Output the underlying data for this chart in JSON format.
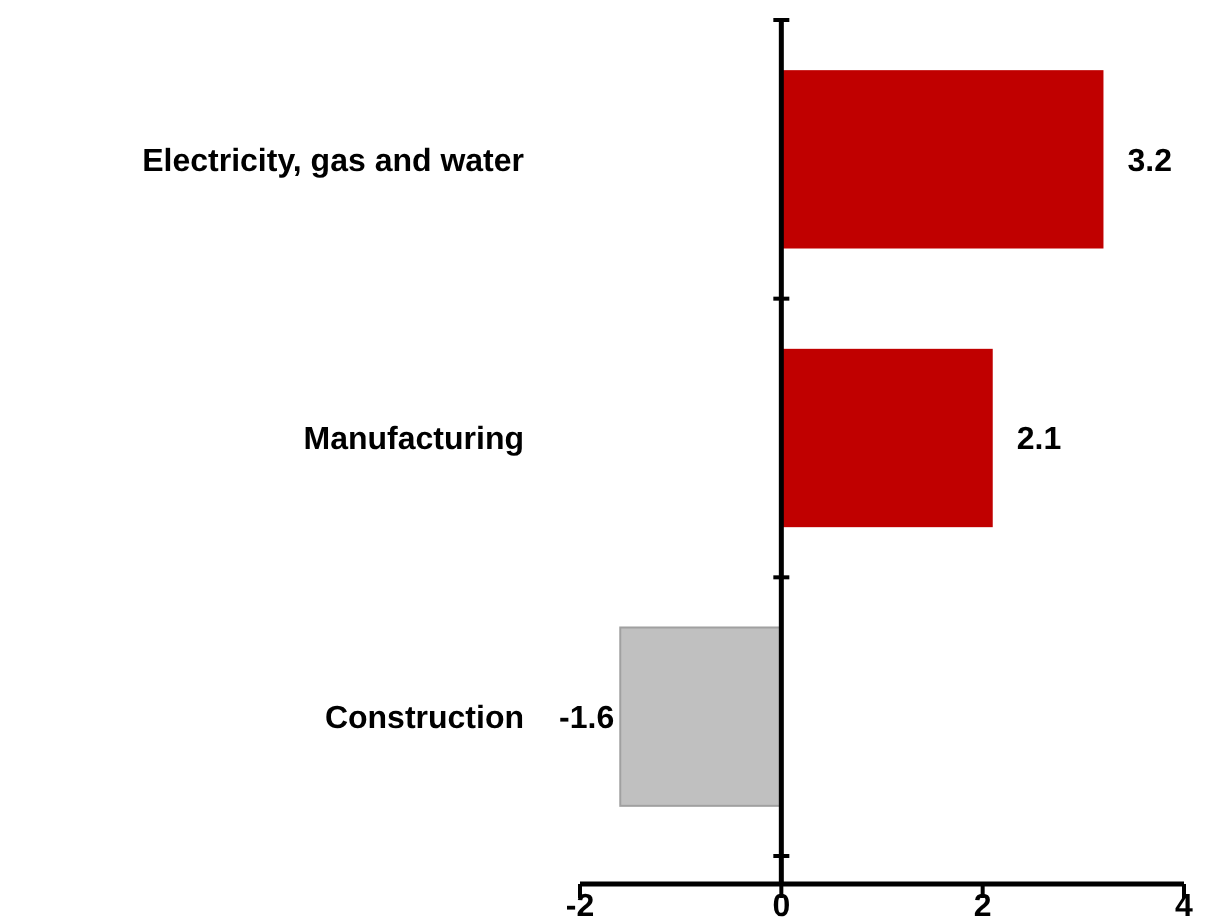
{
  "chart_data": {
    "type": "bar",
    "orientation": "horizontal",
    "categories": [
      "Electricity, gas and water",
      "Manufacturing",
      "Construction"
    ],
    "values": [
      3.2,
      2.1,
      -1.6
    ],
    "colors": [
      "#c00000",
      "#c00000",
      "#c0c0c0"
    ],
    "xlim": [
      -2,
      4
    ],
    "xticks": [
      -2,
      0,
      2,
      4
    ],
    "data_labels": true
  }
}
